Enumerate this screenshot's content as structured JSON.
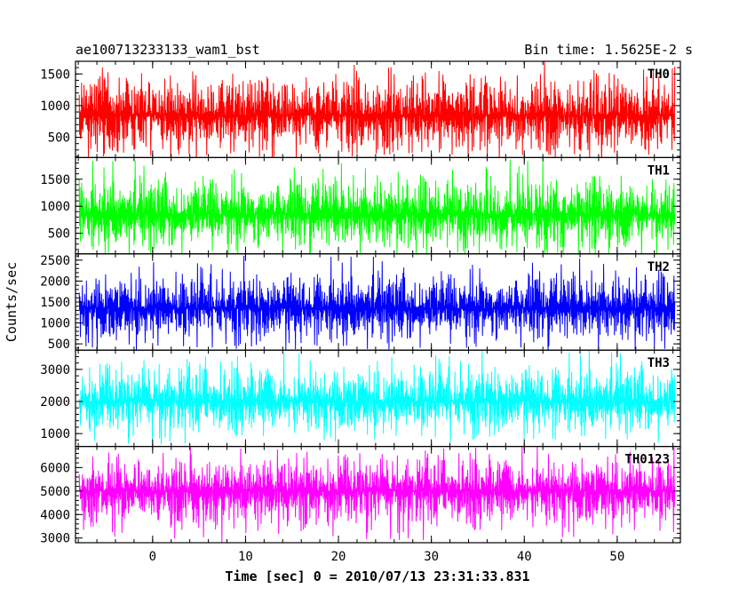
{
  "chart_data": {
    "type": "line",
    "title_left": "ae100713233133_wam1_bst",
    "title_right": "Bin time: 1.5625E-2 s",
    "xlabel": "Time [sec] 0 = 2010/07/13 23:31:33.831",
    "ylabel": "Counts/sec",
    "xlim": [
      -8.3,
      56.8
    ],
    "x_ticks": [
      0,
      10,
      20,
      30,
      40,
      50
    ],
    "data_x_range": [
      -7.9,
      56.2
    ],
    "panels": [
      {
        "name": "TH0",
        "color": "#ff0000",
        "ylim": [
          180,
          1700
        ],
        "y_ticks": [
          500,
          1000,
          1500
        ],
        "band": {
          "mean": 850,
          "typical_min": 300,
          "typical_max": 1400,
          "min": 200,
          "max": 1700
        }
      },
      {
        "name": "TH1",
        "color": "#00ff00",
        "ylim": [
          120,
          1900
        ],
        "y_ticks": [
          500,
          1000,
          1500
        ],
        "band": {
          "mean": 850,
          "typical_min": 250,
          "typical_max": 1450,
          "min": 130,
          "max": 1900
        }
      },
      {
        "name": "TH2",
        "color": "#0000ff",
        "ylim": [
          350,
          2650
        ],
        "y_ticks": [
          500,
          1000,
          1500,
          2000,
          2500
        ],
        "band": {
          "mean": 1350,
          "typical_min": 600,
          "typical_max": 2100,
          "min": 400,
          "max": 2650
        }
      },
      {
        "name": "TH3",
        "color": "#00ffff",
        "ylim": [
          600,
          3600
        ],
        "y_ticks": [
          1000,
          2000,
          3000
        ],
        "band": {
          "mean": 2000,
          "typical_min": 1100,
          "typical_max": 3000,
          "min": 700,
          "max": 3600
        }
      },
      {
        "name": "TH0123",
        "color": "#ff00ff",
        "ylim": [
          2800,
          6900
        ],
        "y_ticks": [
          3000,
          4000,
          5000,
          6000
        ],
        "band": {
          "mean": 5000,
          "typical_min": 3600,
          "typical_max": 6300,
          "min": 2900,
          "max": 6900
        }
      }
    ]
  }
}
